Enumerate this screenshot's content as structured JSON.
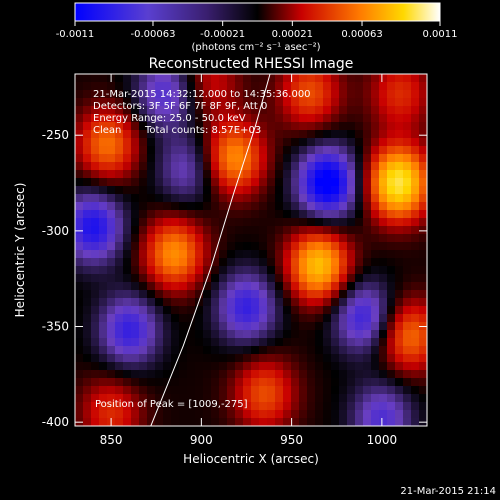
{
  "colorbar": {
    "tick_labels": [
      "-0.0011",
      "-0.00063",
      "-0.00021",
      "0.00021",
      "0.00063",
      "0.0011"
    ],
    "tick_values": [
      -0.0011,
      -0.00063,
      -0.00021,
      0.00021,
      0.00063,
      0.0011
    ],
    "range": [
      -0.0011,
      0.0011
    ],
    "units_label": "(photons cm⁻² s⁻¹ asec⁻²)"
  },
  "chart_data": {
    "type": "heatmap",
    "title": "Reconstructed RHESSI Image",
    "xlabel": "Heliocentric X (arcsec)",
    "ylabel": "Heliocentric Y (arcsec)",
    "xlim": [
      830,
      1025
    ],
    "ylim": [
      -402,
      -218
    ],
    "x_ticks": [
      850,
      900,
      950,
      1000
    ],
    "y_ticks": [
      -250,
      -300,
      -350,
      -400
    ],
    "x_tick_labels": [
      "850",
      "900",
      "950",
      "1000"
    ],
    "y_tick_labels": [
      "-250",
      "-300",
      "-350",
      "-400"
    ],
    "peak": [
      1009,
      -275
    ],
    "colormap_stops": [
      "#0000ff",
      "#6a3fc0",
      "#000000",
      "#c80000",
      "#ff7a00",
      "#ffd800",
      "#ffffff"
    ],
    "regions": [
      {
        "x": 1009,
        "y": -275,
        "value": 0.0011
      },
      {
        "x": 965,
        "y": -318,
        "value": 0.0009
      },
      {
        "x": 918,
        "y": -262,
        "value": 0.0007
      },
      {
        "x": 885,
        "y": -312,
        "value": 0.0007
      },
      {
        "x": 848,
        "y": -255,
        "value": 0.0006
      },
      {
        "x": 1015,
        "y": -355,
        "value": 0.0006
      },
      {
        "x": 935,
        "y": -385,
        "value": 0.0005
      },
      {
        "x": 960,
        "y": -228,
        "value": 0.0005
      },
      {
        "x": 1010,
        "y": -228,
        "value": 0.0004
      },
      {
        "x": 850,
        "y": -395,
        "value": 0.0004
      },
      {
        "x": 905,
        "y": -222,
        "value": 0.0003
      },
      {
        "x": 970,
        "y": -275,
        "value": -0.0009
      },
      {
        "x": 925,
        "y": -340,
        "value": -0.0006
      },
      {
        "x": 860,
        "y": -352,
        "value": -0.0006
      },
      {
        "x": 840,
        "y": -298,
        "value": -0.0007
      },
      {
        "x": 880,
        "y": -228,
        "value": -0.0005
      },
      {
        "x": 990,
        "y": -345,
        "value": -0.0006
      },
      {
        "x": 1000,
        "y": -398,
        "value": -0.0005
      },
      {
        "x": 892,
        "y": -268,
        "value": -0.0004
      }
    ],
    "limb_curve": [
      [
        872,
        -402
      ],
      [
        890,
        -360
      ],
      [
        905,
        -320
      ],
      [
        918,
        -280
      ],
      [
        930,
        -245
      ],
      [
        938,
        -218
      ]
    ]
  },
  "info": {
    "time_range": "21-Mar-2015 14:32:12.000 to 14:35:36.000",
    "detectors": "Detectors: 3F 5F 6F 7F 8F 9F, Att 0",
    "energy_range": "Energy Range: 25.0 - 50.0 keV",
    "clean": "Clean",
    "total_counts": "Total counts: 8.57E+03",
    "peak_position": "Position of Peak = [1009,-275]"
  },
  "footer_timestamp": "21-Mar-2015 21:14",
  "colors": {
    "axes": "#ffffff",
    "limb": "#ffffff",
    "background": "#000000"
  }
}
